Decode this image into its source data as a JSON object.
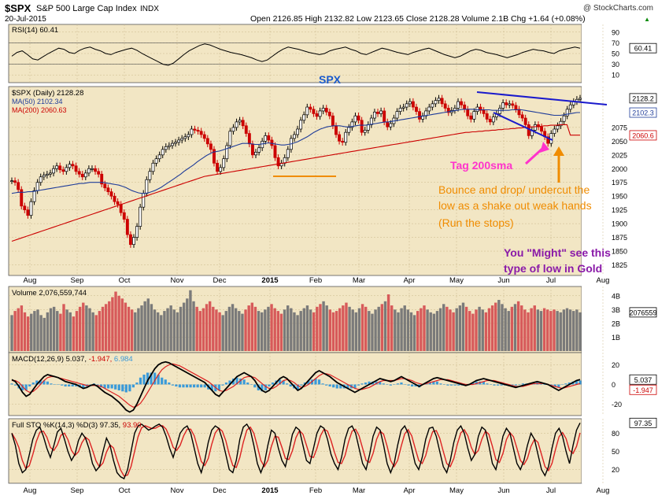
{
  "header": {
    "symbol": "$SPX",
    "name": "S&P 500 Large Cap Index",
    "exchange": "INDX",
    "date": "20-Jul-2015",
    "watermark": "@ StockCharts.com",
    "ohlc_line": "Open 2126.85  High 2132.82  Low 2123.65  Close 2128.28  Volume 2.1B  Chg +1.64 (+0.08%)",
    "up_arrow": "▲"
  },
  "colors": {
    "panel_bg": "#f2e6c4",
    "price_bar": "#000000",
    "price_bar_down": "#cc0000",
    "ma50": "#1f3c99",
    "ma200": "#cc0000",
    "annotation_blue": "#1a1acc",
    "annotation_orange": "#f08c00",
    "annotation_magenta": "#ff33cc",
    "annotation_purple": "#8a1aa8",
    "macd_hist": "#3a9ad9",
    "macd_line": "#000000",
    "signal_line": "#dd2222"
  },
  "x_axis_labels": [
    "Aug",
    "Sep",
    "Oct",
    "Nov",
    "Dec",
    "2015",
    "Feb",
    "Mar",
    "Apr",
    "May",
    "Jun",
    "Jul",
    "Aug"
  ],
  "chart_data": [
    {
      "id": "rsi",
      "type": "line",
      "legend": "RSI(14) 60.41",
      "last_value_label": "60.41",
      "ylim": [
        0,
        100
      ],
      "ticks": [
        "90",
        "70",
        "50",
        "30",
        "10"
      ],
      "overbought": 70,
      "oversold": 30,
      "values": [
        45,
        52,
        55,
        48,
        40,
        38,
        44,
        50,
        55,
        60,
        58,
        52,
        50,
        56,
        60,
        62,
        58,
        55,
        50,
        48,
        52,
        55,
        58,
        60,
        56,
        50,
        45,
        40,
        35,
        30,
        28,
        32,
        40,
        48,
        55,
        60,
        65,
        68,
        66,
        62,
        58,
        55,
        52,
        50,
        48,
        45,
        42,
        38,
        35,
        38,
        45,
        52,
        58,
        62,
        60,
        58,
        55,
        52,
        50,
        48,
        50,
        55,
        58,
        60,
        62,
        58,
        55,
        50,
        48,
        52,
        56,
        60,
        58,
        55,
        52,
        50,
        48,
        52,
        55,
        58,
        60,
        56,
        52,
        48,
        45,
        42,
        45,
        50,
        55,
        58,
        56,
        52,
        50,
        48,
        45,
        42,
        45,
        48,
        52,
        55,
        58,
        56,
        55,
        52,
        50,
        55,
        58,
        60,
        62,
        60
      ]
    },
    {
      "id": "price",
      "type": "ohlc",
      "title": "SPX",
      "legend": [
        "$SPX (Daily) 2128.28",
        "MA(50) 2102.34",
        "MA(200) 2060.63"
      ],
      "last_value_labels": [
        "2128.2",
        "2102.3",
        "2060.6"
      ],
      "ylim": [
        1810,
        2145
      ],
      "ticks": [
        "2075",
        "2050",
        "2025",
        "2000",
        "1975",
        "1950",
        "1925",
        "1900",
        "1875",
        "1850",
        "1825"
      ],
      "closes": [
        1978,
        1975,
        1962,
        1932,
        1925,
        1915,
        1940,
        1960,
        1975,
        1985,
        1988,
        1990,
        1992,
        2000,
        2005,
        1998,
        1995,
        2002,
        2008,
        2005,
        1995,
        1990,
        1985,
        1992,
        2000,
        2000,
        1995,
        1990,
        1972,
        1965,
        1958,
        1950,
        1940,
        1935,
        1920,
        1908,
        1880,
        1862,
        1875,
        1895,
        1930,
        1955,
        1980,
        1995,
        2010,
        2018,
        2025,
        2035,
        2040,
        2042,
        2046,
        2048,
        2052,
        2055,
        2058,
        2062,
        2072,
        2070,
        2068,
        2062,
        2055,
        2045,
        2035,
        2010,
        1995,
        2002,
        2018,
        2042,
        2068,
        2075,
        2085,
        2088,
        2078,
        2064,
        2045,
        2025,
        2030,
        2038,
        2050,
        2060,
        2052,
        2042,
        2020,
        2005,
        2010,
        2020,
        2035,
        2055,
        2062,
        2072,
        2088,
        2098,
        2112,
        2108,
        2100,
        2095,
        2105,
        2110,
        2103,
        2096,
        2078,
        2062,
        2050,
        2048,
        2066,
        2075,
        2085,
        2096,
        2088,
        2066,
        2070,
        2080,
        2092,
        2103,
        2100,
        2105,
        2085,
        2076,
        2082,
        2092,
        2104,
        2110,
        2112,
        2118,
        2122,
        2112,
        2104,
        2090,
        2096,
        2105,
        2112,
        2118,
        2124,
        2128,
        2118,
        2110,
        2102,
        2106,
        2110,
        2122,
        2116,
        2108,
        2096,
        2090,
        2104,
        2112,
        2106,
        2100,
        2090,
        2085,
        2094,
        2100,
        2110,
        2120,
        2116,
        2118,
        2115,
        2108,
        2098,
        2092,
        2080,
        2060,
        2070,
        2080,
        2076,
        2068,
        2058,
        2046,
        2064,
        2072,
        2078,
        2086,
        2096,
        2108,
        2116,
        2122,
        2126,
        2128
      ],
      "ma50": [
        1955,
        1956,
        1957,
        1957,
        1957,
        1958,
        1958,
        1959,
        1960,
        1961,
        1962,
        1963,
        1964,
        1965,
        1966,
        1967,
        1968,
        1969,
        1970,
        1971,
        1972,
        1973,
        1973,
        1974,
        1975,
        1975,
        1975,
        1975,
        1975,
        1974,
        1973,
        1972,
        1971,
        1970,
        1968,
        1966,
        1963,
        1960,
        1958,
        1956,
        1955,
        1955,
        1956,
        1958,
        1960,
        1963,
        1966,
        1970,
        1974,
        1978,
        1982,
        1986,
        1990,
        1995,
        1999,
        2003,
        2007,
        2012,
        2016,
        2020,
        2024,
        2027,
        2030,
        2031,
        2032,
        2034,
        2036,
        2038,
        2040,
        2042,
        2044,
        2046,
        2046,
        2046,
        2045,
        2044,
        2044,
        2045,
        2046,
        2047,
        2046,
        2045,
        2044,
        2043,
        2043,
        2044,
        2045,
        2047,
        2049,
        2052,
        2055,
        2058,
        2062,
        2066,
        2069,
        2072,
        2074,
        2076,
        2077,
        2078,
        2078,
        2078,
        2077,
        2076,
        2076,
        2077,
        2078,
        2079,
        2079,
        2079,
        2080,
        2081,
        2082,
        2083,
        2084,
        2085,
        2085,
        2086,
        2087,
        2088,
        2089,
        2090,
        2091,
        2092,
        2093,
        2094,
        2095,
        2096,
        2097,
        2098,
        2099,
        2100,
        2101,
        2102,
        2103,
        2104,
        2105,
        2106,
        2107,
        2108,
        2108,
        2108,
        2108,
        2107,
        2107,
        2107,
        2107,
        2107,
        2106,
        2106,
        2106,
        2106,
        2106,
        2106,
        2107,
        2107,
        2107,
        2107,
        2106,
        2105,
        2104,
        2103,
        2102,
        2101,
        2100,
        2099,
        2098,
        2097,
        2097,
        2097,
        2098,
        2099,
        2100,
        2101,
        2102,
        2102
      ],
      "ma200": [
        1868,
        1870,
        1872,
        1874,
        1876,
        1878,
        1880,
        1882,
        1884,
        1886,
        1888,
        1890,
        1892,
        1894,
        1896,
        1898,
        1900,
        1902,
        1904,
        1906,
        1908,
        1910,
        1912,
        1914,
        1916,
        1918,
        1920,
        1922,
        1924,
        1926,
        1928,
        1930,
        1932,
        1934,
        1936,
        1938,
        1940,
        1942,
        1944,
        1946,
        1948,
        1950,
        1952,
        1954,
        1956,
        1958,
        1960,
        1962,
        1964,
        1966,
        1968,
        1970,
        1972,
        1974,
        1976,
        1978,
        1980,
        1982,
        1984,
        1986,
        1987,
        1988,
        1989,
        1990,
        1991,
        1992,
        1993,
        1994,
        1995,
        1996,
        1997,
        1998,
        1999,
        2000,
        2001,
        2002,
        2003,
        2004,
        2005,
        2006,
        2007,
        2008,
        2009,
        2010,
        2011,
        2012,
        2013,
        2014,
        2015,
        2016,
        2017,
        2018,
        2019,
        2020,
        2021,
        2022,
        2023,
        2024,
        2025,
        2026,
        2027,
        2028,
        2029,
        2030,
        2031,
        2032,
        2033,
        2034,
        2035,
        2036,
        2037,
        2038,
        2039,
        2040,
        2041,
        2042,
        2043,
        2044,
        2045,
        2046,
        2047,
        2048,
        2049,
        2050,
        2051,
        2052,
        2053,
        2054,
        2055,
        2056,
        2057,
        2058,
        2059,
        2060,
        2061,
        2062,
        2063,
        2064,
        2065,
        2066,
        2066,
        2067,
        2067,
        2068,
        2068,
        2069,
        2069,
        2070,
        2070,
        2071,
        2071,
        2072,
        2072,
        2073,
        2073,
        2074,
        2074,
        2075,
        2075,
        2076,
        2076,
        2077,
        2077,
        2078,
        2078,
        2079,
        2079,
        2079,
        2080,
        2080,
        2080,
        2061,
        2061,
        2061,
        2061
      ]
    },
    {
      "id": "volume",
      "type": "bar",
      "legend": "Volume 2,076,559,744",
      "last_value_label": "2076559",
      "ticks": [
        "4B",
        "3B",
        "2B",
        "1B"
      ],
      "ylim": [
        0,
        4.5
      ],
      "values": [
        2.6,
        2.9,
        3.1,
        3.3,
        2.8,
        2.5,
        2.7,
        2.9,
        3.0,
        2.6,
        2.4,
        2.8,
        3.1,
        3.2,
        2.9,
        2.7,
        3.4,
        3.0,
        2.8,
        2.5,
        2.9,
        3.2,
        3.5,
        3.3,
        3.1,
        2.8,
        2.6,
        2.9,
        3.2,
        3.4,
        3.6,
        3.9,
        4.3,
        4.0,
        3.8,
        3.5,
        3.2,
        3.0,
        2.8,
        3.1,
        3.3,
        3.6,
        3.8,
        3.4,
        3.0,
        2.8,
        2.6,
        2.9,
        3.1,
        3.3,
        3.0,
        2.8,
        3.2,
        3.5,
        3.8,
        4.4,
        3.6,
        3.2,
        2.9,
        3.1,
        3.4,
        3.6,
        3.2,
        3.0,
        2.8,
        2.6,
        2.9,
        3.2,
        3.4,
        3.1,
        2.9,
        2.7,
        3.0,
        3.3,
        3.5,
        3.2,
        2.9,
        2.8,
        3.0,
        3.2,
        3.4,
        3.1,
        2.9,
        2.7,
        3.0,
        3.3,
        3.1,
        2.8,
        2.6,
        2.9,
        3.1,
        3.3,
        3.0,
        2.8,
        3.2,
        3.4,
        3.6,
        3.3,
        3.0,
        2.8,
        2.9,
        3.1,
        3.3,
        3.5,
        3.2,
        3.0,
        2.8,
        3.1,
        3.4,
        3.2,
        2.9,
        2.7,
        3.0,
        3.2,
        3.4,
        3.6,
        4.1,
        3.3,
        3.0,
        2.8,
        3.1,
        3.3,
        3.0,
        2.8,
        2.6,
        2.9,
        3.1,
        3.3,
        3.0,
        2.8,
        2.7,
        2.9,
        3.1,
        3.4,
        3.2,
        3.0,
        2.8,
        3.1,
        3.3,
        3.5,
        3.2,
        2.9,
        2.7,
        3.0,
        3.2,
        3.0,
        2.8,
        3.1,
        3.3,
        3.5,
        3.7,
        3.4,
        3.1,
        2.9,
        3.2,
        3.4,
        3.6,
        3.3,
        3.0,
        2.8,
        3.1,
        3.3,
        3.0,
        2.9,
        3.1,
        3.0,
        2.9,
        3.0,
        2.9,
        2.8,
        3.0,
        3.1,
        3.0,
        2.9,
        3.0,
        2.8
      ]
    },
    {
      "id": "macd",
      "type": "line",
      "legend_prefix": "MACD(12,26,9) 5.037,",
      "legend_signal": "-1.947,",
      "legend_hist": "6.984",
      "last_value_labels": [
        "5.037",
        "-1.947"
      ],
      "ticks": [
        "20",
        "0",
        "-20"
      ],
      "ylim": [
        -30,
        30
      ],
      "macd": [
        5,
        3,
        -2,
        -8,
        -12,
        -10,
        -5,
        0,
        4,
        8,
        10,
        9,
        8,
        7,
        5,
        3,
        2,
        1,
        0,
        -2,
        -4,
        -3,
        -1,
        0,
        -2,
        -5,
        -8,
        -10,
        -12,
        -15,
        -18,
        -22,
        -26,
        -28,
        -26,
        -20,
        -12,
        -4,
        4,
        10,
        16,
        20,
        22,
        23,
        22,
        20,
        18,
        16,
        14,
        12,
        10,
        8,
        6,
        4,
        2,
        -2,
        -6,
        -10,
        -12,
        -8,
        -4,
        0,
        4,
        8,
        10,
        12,
        10,
        8,
        4,
        -2,
        -6,
        -8,
        -6,
        -2,
        2,
        6,
        8,
        6,
        2,
        -2,
        -6,
        -4,
        0,
        4,
        8,
        12,
        14,
        12,
        10,
        8,
        5,
        2,
        0,
        -2,
        -4,
        -6,
        -8,
        -6,
        -4,
        -2,
        0,
        2,
        4,
        6,
        5,
        4,
        3,
        4,
        6,
        8,
        6,
        4,
        2,
        0,
        -2,
        0,
        2,
        4,
        6,
        7,
        6,
        5,
        4,
        3,
        2,
        1,
        0,
        -1,
        0,
        2,
        4,
        5,
        6,
        5,
        4,
        3,
        2,
        1,
        0,
        -1,
        -2,
        -3,
        -2,
        -1,
        0,
        1,
        2,
        3,
        2,
        1,
        0,
        -2,
        -4,
        -6,
        -4,
        -2,
        0,
        2,
        4,
        5
      ],
      "signal": [
        4,
        4,
        2,
        -2,
        -6,
        -8,
        -7,
        -4,
        0,
        4,
        7,
        8,
        8,
        7,
        6,
        5,
        4,
        3,
        2,
        1,
        0,
        -1,
        -1,
        -1,
        -1,
        -2,
        -4,
        -6,
        -8,
        -10,
        -12,
        -15,
        -18,
        -21,
        -23,
        -22,
        -19,
        -14,
        -8,
        -2,
        4,
        10,
        15,
        18,
        20,
        21,
        20,
        19,
        17,
        15,
        13,
        11,
        9,
        7,
        5,
        3,
        0,
        -3,
        -6,
        -7,
        -6,
        -4,
        -2,
        1,
        4,
        7,
        8,
        8,
        7,
        4,
        1,
        -2,
        -4,
        -4,
        -2,
        1,
        4,
        5,
        4,
        2,
        -1,
        -3,
        -2,
        0,
        3,
        6,
        9,
        11,
        11,
        10,
        8,
        6,
        4,
        2,
        0,
        -2,
        -4,
        -5,
        -5,
        -4,
        -3,
        -1,
        1,
        3,
        4,
        4,
        4,
        4,
        5,
        6,
        6,
        5,
        4,
        2,
        1,
        0,
        1,
        2,
        3,
        4,
        5,
        5,
        5,
        4,
        3,
        2,
        1,
        0,
        0,
        0,
        1,
        2,
        3,
        4,
        4,
        4,
        3,
        2,
        1,
        0,
        -1,
        -2,
        -2,
        -2,
        -1,
        0,
        1,
        1,
        1,
        1,
        0,
        -1,
        -2,
        -3,
        -4,
        -3,
        -2,
        -1,
        0,
        1
      ]
    },
    {
      "id": "sto",
      "type": "line",
      "legend_prefix": "Full STO %K(14,3) %D(3) 97.35,",
      "legend_d": "93.90",
      "last_value_label": "97.35",
      "ticks": [
        "80",
        "50",
        "20"
      ],
      "ylim": [
        0,
        100
      ],
      "k": [
        80,
        60,
        30,
        15,
        20,
        45,
        70,
        85,
        90,
        75,
        55,
        40,
        60,
        82,
        88,
        70,
        50,
        35,
        45,
        68,
        80,
        72,
        55,
        30,
        18,
        25,
        50,
        72,
        60,
        35,
        15,
        8,
        5,
        20,
        50,
        80,
        92,
        95,
        90,
        85,
        88,
        92,
        95,
        90,
        75,
        55,
        40,
        60,
        80,
        88,
        92,
        80,
        55,
        30,
        15,
        35,
        65,
        85,
        92,
        88,
        70,
        45,
        20,
        15,
        35,
        70,
        90,
        95,
        85,
        60,
        30,
        15,
        30,
        60,
        85,
        80,
        55,
        35,
        25,
        50,
        78,
        90,
        85,
        60,
        35,
        30,
        55,
        80,
        92,
        88,
        70,
        45,
        30,
        20,
        40,
        70,
        88,
        92,
        80,
        55,
        30,
        20,
        45,
        75,
        90,
        85,
        60,
        30,
        15,
        30,
        60,
        85,
        92,
        80,
        55,
        30,
        20,
        40,
        70,
        88,
        90,
        75,
        50,
        25,
        15,
        35,
        65,
        85,
        92,
        80,
        55,
        35,
        45,
        75,
        90,
        85,
        60,
        30,
        20,
        45,
        75,
        88,
        80,
        55,
        30,
        20,
        35,
        60,
        80,
        70,
        45,
        20,
        10,
        25,
        55,
        80,
        88,
        75,
        50,
        30,
        60,
        85,
        97
      ]
    }
  ],
  "annotations": {
    "spx_label": "SPX",
    "tag_200sma": "Tag 200sma",
    "bounce_line1": "Bounce and drop/ undercut the",
    "bounce_line2": "low as a shake out weak hands",
    "bounce_line3": "(Run the stops)",
    "might_line1": "You \"Might\" see this",
    "might_line2": "type of low in Gold"
  }
}
